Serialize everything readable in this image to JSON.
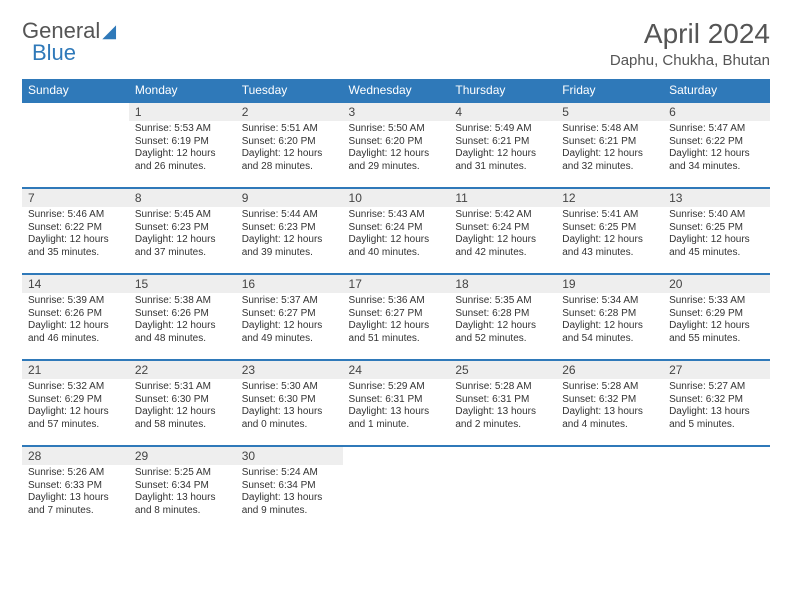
{
  "brand": {
    "part1": "General",
    "part2": "Blue"
  },
  "title": "April 2024",
  "location": "Daphu, Chukha, Bhutan",
  "colors": {
    "header_bg": "#2f79b9",
    "header_text": "#ffffff",
    "daynum_bg": "#eeeeee",
    "rule": "#2f79b9",
    "page_bg": "#ffffff",
    "body_text": "#333333",
    "title_text": "#555555"
  },
  "weekdays": [
    "Sunday",
    "Monday",
    "Tuesday",
    "Wednesday",
    "Thursday",
    "Friday",
    "Saturday"
  ],
  "weeks": [
    [
      {
        "n": "",
        "sr": "",
        "ss": "",
        "dl": ""
      },
      {
        "n": "1",
        "sr": "Sunrise: 5:53 AM",
        "ss": "Sunset: 6:19 PM",
        "dl": "Daylight: 12 hours and 26 minutes."
      },
      {
        "n": "2",
        "sr": "Sunrise: 5:51 AM",
        "ss": "Sunset: 6:20 PM",
        "dl": "Daylight: 12 hours and 28 minutes."
      },
      {
        "n": "3",
        "sr": "Sunrise: 5:50 AM",
        "ss": "Sunset: 6:20 PM",
        "dl": "Daylight: 12 hours and 29 minutes."
      },
      {
        "n": "4",
        "sr": "Sunrise: 5:49 AM",
        "ss": "Sunset: 6:21 PM",
        "dl": "Daylight: 12 hours and 31 minutes."
      },
      {
        "n": "5",
        "sr": "Sunrise: 5:48 AM",
        "ss": "Sunset: 6:21 PM",
        "dl": "Daylight: 12 hours and 32 minutes."
      },
      {
        "n": "6",
        "sr": "Sunrise: 5:47 AM",
        "ss": "Sunset: 6:22 PM",
        "dl": "Daylight: 12 hours and 34 minutes."
      }
    ],
    [
      {
        "n": "7",
        "sr": "Sunrise: 5:46 AM",
        "ss": "Sunset: 6:22 PM",
        "dl": "Daylight: 12 hours and 35 minutes."
      },
      {
        "n": "8",
        "sr": "Sunrise: 5:45 AM",
        "ss": "Sunset: 6:23 PM",
        "dl": "Daylight: 12 hours and 37 minutes."
      },
      {
        "n": "9",
        "sr": "Sunrise: 5:44 AM",
        "ss": "Sunset: 6:23 PM",
        "dl": "Daylight: 12 hours and 39 minutes."
      },
      {
        "n": "10",
        "sr": "Sunrise: 5:43 AM",
        "ss": "Sunset: 6:24 PM",
        "dl": "Daylight: 12 hours and 40 minutes."
      },
      {
        "n": "11",
        "sr": "Sunrise: 5:42 AM",
        "ss": "Sunset: 6:24 PM",
        "dl": "Daylight: 12 hours and 42 minutes."
      },
      {
        "n": "12",
        "sr": "Sunrise: 5:41 AM",
        "ss": "Sunset: 6:25 PM",
        "dl": "Daylight: 12 hours and 43 minutes."
      },
      {
        "n": "13",
        "sr": "Sunrise: 5:40 AM",
        "ss": "Sunset: 6:25 PM",
        "dl": "Daylight: 12 hours and 45 minutes."
      }
    ],
    [
      {
        "n": "14",
        "sr": "Sunrise: 5:39 AM",
        "ss": "Sunset: 6:26 PM",
        "dl": "Daylight: 12 hours and 46 minutes."
      },
      {
        "n": "15",
        "sr": "Sunrise: 5:38 AM",
        "ss": "Sunset: 6:26 PM",
        "dl": "Daylight: 12 hours and 48 minutes."
      },
      {
        "n": "16",
        "sr": "Sunrise: 5:37 AM",
        "ss": "Sunset: 6:27 PM",
        "dl": "Daylight: 12 hours and 49 minutes."
      },
      {
        "n": "17",
        "sr": "Sunrise: 5:36 AM",
        "ss": "Sunset: 6:27 PM",
        "dl": "Daylight: 12 hours and 51 minutes."
      },
      {
        "n": "18",
        "sr": "Sunrise: 5:35 AM",
        "ss": "Sunset: 6:28 PM",
        "dl": "Daylight: 12 hours and 52 minutes."
      },
      {
        "n": "19",
        "sr": "Sunrise: 5:34 AM",
        "ss": "Sunset: 6:28 PM",
        "dl": "Daylight: 12 hours and 54 minutes."
      },
      {
        "n": "20",
        "sr": "Sunrise: 5:33 AM",
        "ss": "Sunset: 6:29 PM",
        "dl": "Daylight: 12 hours and 55 minutes."
      }
    ],
    [
      {
        "n": "21",
        "sr": "Sunrise: 5:32 AM",
        "ss": "Sunset: 6:29 PM",
        "dl": "Daylight: 12 hours and 57 minutes."
      },
      {
        "n": "22",
        "sr": "Sunrise: 5:31 AM",
        "ss": "Sunset: 6:30 PM",
        "dl": "Daylight: 12 hours and 58 minutes."
      },
      {
        "n": "23",
        "sr": "Sunrise: 5:30 AM",
        "ss": "Sunset: 6:30 PM",
        "dl": "Daylight: 13 hours and 0 minutes."
      },
      {
        "n": "24",
        "sr": "Sunrise: 5:29 AM",
        "ss": "Sunset: 6:31 PM",
        "dl": "Daylight: 13 hours and 1 minute."
      },
      {
        "n": "25",
        "sr": "Sunrise: 5:28 AM",
        "ss": "Sunset: 6:31 PM",
        "dl": "Daylight: 13 hours and 2 minutes."
      },
      {
        "n": "26",
        "sr": "Sunrise: 5:28 AM",
        "ss": "Sunset: 6:32 PM",
        "dl": "Daylight: 13 hours and 4 minutes."
      },
      {
        "n": "27",
        "sr": "Sunrise: 5:27 AM",
        "ss": "Sunset: 6:32 PM",
        "dl": "Daylight: 13 hours and 5 minutes."
      }
    ],
    [
      {
        "n": "28",
        "sr": "Sunrise: 5:26 AM",
        "ss": "Sunset: 6:33 PM",
        "dl": "Daylight: 13 hours and 7 minutes."
      },
      {
        "n": "29",
        "sr": "Sunrise: 5:25 AM",
        "ss": "Sunset: 6:34 PM",
        "dl": "Daylight: 13 hours and 8 minutes."
      },
      {
        "n": "30",
        "sr": "Sunrise: 5:24 AM",
        "ss": "Sunset: 6:34 PM",
        "dl": "Daylight: 13 hours and 9 minutes."
      },
      {
        "n": "",
        "sr": "",
        "ss": "",
        "dl": ""
      },
      {
        "n": "",
        "sr": "",
        "ss": "",
        "dl": ""
      },
      {
        "n": "",
        "sr": "",
        "ss": "",
        "dl": ""
      },
      {
        "n": "",
        "sr": "",
        "ss": "",
        "dl": ""
      }
    ]
  ]
}
